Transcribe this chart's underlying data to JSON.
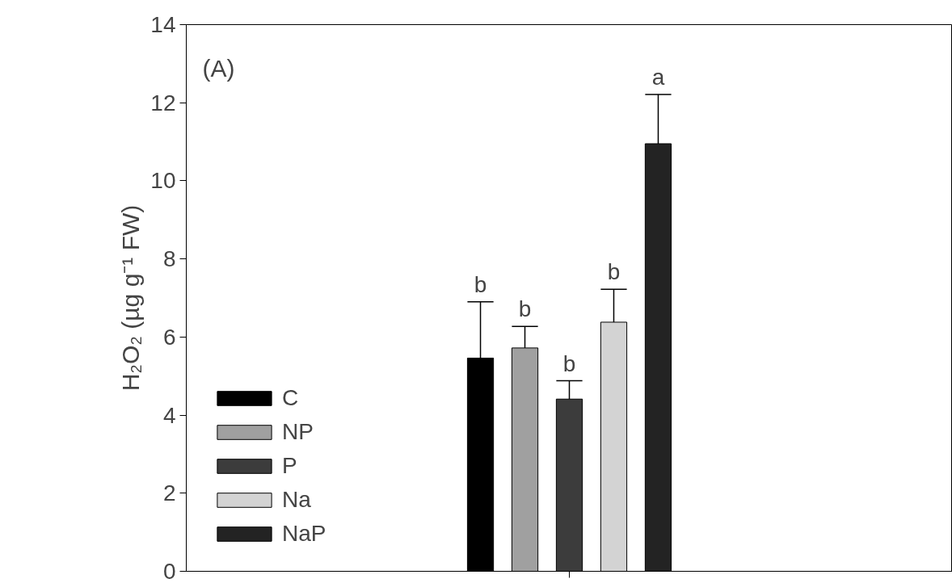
{
  "chart_data": {
    "type": "bar",
    "ylabel": "H₂O₂ (µg g⁻¹ FW)",
    "categories": [
      null
    ],
    "series": [
      {
        "name": "C",
        "color": "#000000",
        "values": [
          5.46
        ],
        "errors": [
          [
            5.46,
            6.9
          ]
        ],
        "value_labels": [
          "b"
        ]
      },
      {
        "name": "NP",
        "color": "#a0a0a0",
        "values": [
          5.72
        ],
        "errors": [
          [
            5.72,
            6.27
          ]
        ],
        "value_labels": [
          "b"
        ]
      },
      {
        "name": "P",
        "color": "#3c3c3c",
        "values": [
          4.41
        ],
        "errors": [
          [
            4.41,
            4.88
          ]
        ],
        "value_labels": [
          "b"
        ]
      },
      {
        "name": "Na",
        "color": "#d3d3d3",
        "values": [
          6.38
        ],
        "errors": [
          [
            6.38,
            7.22
          ]
        ],
        "value_labels": [
          "b"
        ]
      },
      {
        "name": "NaP",
        "color": "#232323",
        "values": [
          10.95
        ],
        "errors": [
          [
            10.95,
            12.21
          ]
        ],
        "value_labels": [
          "a"
        ]
      }
    ],
    "ylim": [
      0,
      14
    ],
    "yticks": [
      0,
      2,
      4,
      6,
      8,
      10,
      12,
      14
    ],
    "grid": false,
    "legend": "bottom left",
    "annotations": [
      "(A)"
    ]
  }
}
